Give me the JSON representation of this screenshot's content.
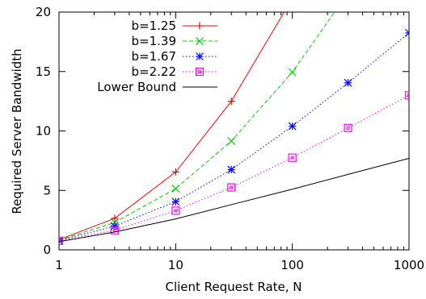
{
  "chart_data": {
    "type": "line",
    "title": "",
    "xlabel": "Client Request Rate, N",
    "ylabel": "Required Server Bandwidth",
    "x_scale": "log",
    "xlim": [
      1,
      1000
    ],
    "ylim": [
      0,
      20
    ],
    "x_ticks": [
      1,
      10,
      100,
      1000
    ],
    "y_ticks": [
      0,
      5,
      10,
      15,
      20
    ],
    "grid": false,
    "legend_position": "top-left",
    "series": [
      {
        "name": "b=1.25",
        "color": "#ff0000",
        "line": "solid",
        "marker": "plus",
        "points": [
          [
            1,
            0.85
          ],
          [
            3,
            2.65
          ],
          [
            10,
            6.55
          ],
          [
            30,
            12.5
          ],
          [
            85,
            20.0
          ]
        ]
      },
      {
        "name": "b=1.39",
        "color": "#00cc00",
        "line": "dashed",
        "marker": "cross",
        "points": [
          [
            1,
            0.8
          ],
          [
            3,
            2.3
          ],
          [
            10,
            5.15
          ],
          [
            30,
            9.15
          ],
          [
            100,
            14.95
          ],
          [
            230,
            20.0
          ]
        ]
      },
      {
        "name": "b=1.67",
        "color": "#0000ff",
        "line": "dotted",
        "marker": "asterisk",
        "points": [
          [
            1,
            0.78
          ],
          [
            3,
            2.0
          ],
          [
            10,
            4.05
          ],
          [
            30,
            6.75
          ],
          [
            100,
            10.4
          ],
          [
            300,
            14.05
          ],
          [
            1000,
            18.25
          ]
        ]
      },
      {
        "name": "b=2.22",
        "color": "#ff00ff",
        "line": "dotted",
        "marker": "square",
        "points": [
          [
            1,
            0.75
          ],
          [
            3,
            1.65
          ],
          [
            10,
            3.3
          ],
          [
            30,
            5.25
          ],
          [
            100,
            7.75
          ],
          [
            300,
            10.25
          ],
          [
            1000,
            13.0
          ]
        ]
      },
      {
        "name": "Lower Bound",
        "color": "#000000",
        "line": "solid",
        "marker": "none",
        "points": [
          [
            1,
            0.69
          ],
          [
            3,
            1.5
          ],
          [
            10,
            2.6
          ],
          [
            30,
            3.8
          ],
          [
            100,
            5.1
          ],
          [
            300,
            6.35
          ],
          [
            1000,
            7.7
          ]
        ]
      }
    ]
  }
}
